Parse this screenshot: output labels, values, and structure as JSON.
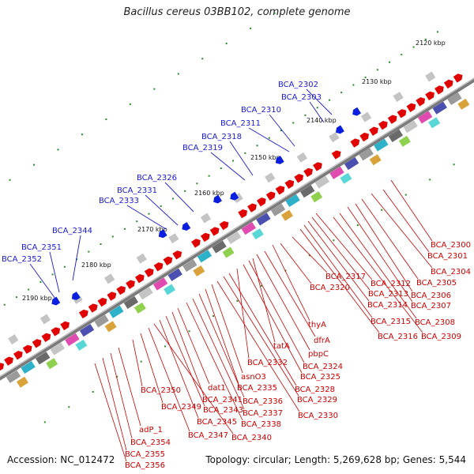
{
  "title": "Bacillus cereus 03BB102, complete genome",
  "footer": {
    "accession": "Accession: NC_012472",
    "topology": "Topology: circular; Length: 5,269,628 bp; Genes: 5,544"
  },
  "scale_labels": [
    "2120 kbp",
    "2130 kbp",
    "2140 kbp",
    "2150 kbp",
    "2160 kbp",
    "2170 kbp",
    "2180 kbp",
    "2190 kbp"
  ],
  "blue_labels": [
    "BCA_2302",
    "BCA_2303",
    "BCA_2310",
    "BCA_2311",
    "BCA_2318",
    "BCA_2319",
    "BCA_2326",
    "BCA_2331",
    "BCA_2333",
    "BCA_2344",
    "BCA_2351",
    "BCA_2352"
  ],
  "red_labels": [
    "BCA_2300",
    "BCA_2301",
    "BCA_2304",
    "BCA_2305",
    "BCA_2306",
    "BCA_2307",
    "BCA_2308",
    "BCA_2309",
    "BCA_2312",
    "BCA_2313",
    "BCA_2314",
    "BCA_2315",
    "BCA_2316",
    "BCA_2317",
    "BCA_2320",
    "thyA",
    "dfrA",
    "pbpC",
    "tatA",
    "BCA_2324",
    "BCA_2325",
    "BCA_2332",
    "BCA_2328",
    "BCA_2329",
    "BCA_2330",
    "asnO3",
    "BCA_2335",
    "BCA_2336",
    "BCA_2337",
    "BCA_2338",
    "dat1",
    "BCA_2341",
    "BCA_2343",
    "BCA_2345",
    "BCA_2340",
    "BCA_2347",
    "BCA_2349",
    "BCA_2350",
    "adP_1",
    "BCA_2354",
    "BCA_2355",
    "BCA_2356"
  ],
  "colors": {
    "backbone": "#8a8a8a",
    "forward": "#e00000",
    "reverse": "#0a1ee0",
    "ticks": "#2a8a2a",
    "label_blue": "#1a1ad6",
    "label_red": "#cc0000"
  }
}
